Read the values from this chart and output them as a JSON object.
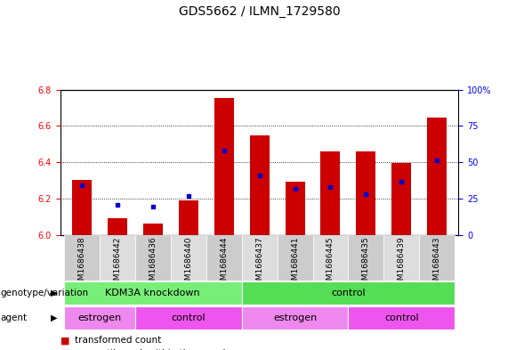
{
  "title": "GDS5662 / ILMN_1729580",
  "samples": [
    "GSM1686438",
    "GSM1686442",
    "GSM1686436",
    "GSM1686440",
    "GSM1686444",
    "GSM1686437",
    "GSM1686441",
    "GSM1686445",
    "GSM1686435",
    "GSM1686439",
    "GSM1686443"
  ],
  "red_values": [
    6.305,
    6.09,
    6.06,
    6.19,
    6.755,
    6.55,
    6.295,
    6.46,
    6.46,
    6.395,
    6.645
  ],
  "blue_values": [
    6.275,
    6.165,
    6.155,
    6.215,
    6.465,
    6.325,
    6.255,
    6.265,
    6.225,
    6.295,
    6.41
  ],
  "ylim_left": [
    6.0,
    6.8
  ],
  "ylim_right": [
    0,
    100
  ],
  "yticks_left": [
    6.0,
    6.2,
    6.4,
    6.6,
    6.8
  ],
  "yticks_right": [
    0,
    25,
    50,
    75,
    100
  ],
  "bar_color": "#cc0000",
  "dot_color": "#0000cc",
  "bar_width": 0.55,
  "geno_data": [
    {
      "label": "KDM3A knockdown",
      "xstart": 0,
      "xend": 4,
      "color": "#77ee77"
    },
    {
      "label": "control",
      "xstart": 5,
      "xend": 10,
      "color": "#55dd55"
    }
  ],
  "agent_data": [
    {
      "label": "estrogen",
      "xstart": 0,
      "xend": 1,
      "color": "#ee88ee"
    },
    {
      "label": "control",
      "xstart": 2,
      "xend": 4,
      "color": "#ee55ee"
    },
    {
      "label": "estrogen",
      "xstart": 5,
      "xend": 7,
      "color": "#ee88ee"
    },
    {
      "label": "control",
      "xstart": 8,
      "xend": 10,
      "color": "#ee55ee"
    }
  ],
  "title_fontsize": 10,
  "tick_fontsize": 7,
  "annot_fontsize": 8
}
